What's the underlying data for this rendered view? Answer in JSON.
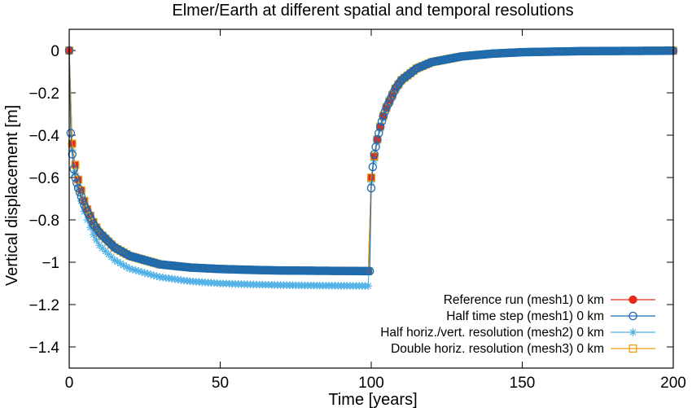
{
  "chart_data": {
    "type": "scatter",
    "title": "Elmer/Earth at different spatial and temporal resolutions",
    "xlabel": "Time [years]",
    "ylabel": "Vertical displacement [m]",
    "xlim": [
      0,
      200
    ],
    "ylim": [
      -1.5,
      0.1
    ],
    "x_ticks": [
      0,
      50,
      100,
      150,
      200
    ],
    "x_tick_labels": [
      "0",
      "50",
      "100",
      "150",
      "200"
    ],
    "y_ticks": [
      0,
      -0.2,
      -0.4,
      -0.6,
      -0.8,
      -1,
      -1.2,
      -1.4
    ],
    "y_tick_labels": [
      "0",
      "−0.2",
      "−0.4",
      "−0.6",
      "−0.8",
      "−1",
      "−1.2",
      "−1.4"
    ],
    "grid": false,
    "legend_position": "bottom-right",
    "marker_interval_years": 1,
    "series": [
      {
        "name": "Reference run (mesh1) 0 km",
        "color": "#e8271a",
        "marker": "filled-circle",
        "x": [
          0,
          1,
          2,
          3,
          4,
          5,
          6,
          8,
          10,
          15,
          20,
          30,
          40,
          50,
          60,
          70,
          80,
          90,
          99,
          100,
          101,
          102,
          103,
          104,
          105,
          106,
          108,
          110,
          115,
          120,
          130,
          140,
          150,
          170,
          200
        ],
        "y": [
          0,
          -0.44,
          -0.54,
          -0.61,
          -0.66,
          -0.71,
          -0.75,
          -0.81,
          -0.86,
          -0.93,
          -0.97,
          -1.01,
          -1.025,
          -1.032,
          -1.036,
          -1.039,
          -1.04,
          -1.041,
          -1.042,
          -0.6,
          -0.5,
          -0.42,
          -0.36,
          -0.31,
          -0.27,
          -0.24,
          -0.18,
          -0.14,
          -0.085,
          -0.055,
          -0.028,
          -0.015,
          -0.008,
          -0.003,
          -0.001
        ]
      },
      {
        "name": "Half time step (mesh1) 0 km",
        "color": "#1c6bb0",
        "marker": "open-circle",
        "x": [
          0,
          0.5,
          1,
          1.5,
          2,
          3,
          4,
          5,
          6,
          8,
          10,
          15,
          20,
          30,
          40,
          50,
          60,
          70,
          80,
          90,
          99,
          99.5,
          100,
          100.5,
          101,
          102,
          103,
          104,
          105,
          106,
          108,
          110,
          115,
          120,
          130,
          140,
          150,
          170,
          200
        ],
        "y": [
          0,
          -0.39,
          -0.49,
          -0.56,
          -0.6,
          -0.65,
          -0.69,
          -0.73,
          -0.76,
          -0.82,
          -0.86,
          -0.93,
          -0.97,
          -1.01,
          -1.025,
          -1.032,
          -1.036,
          -1.039,
          -1.04,
          -1.041,
          -1.042,
          -1.042,
          -0.65,
          -0.55,
          -0.49,
          -0.42,
          -0.36,
          -0.31,
          -0.27,
          -0.24,
          -0.18,
          -0.14,
          -0.085,
          -0.055,
          -0.028,
          -0.015,
          -0.008,
          -0.003,
          -0.001
        ]
      },
      {
        "name": "Half horiz./vert. resolution (mesh2) 0 km",
        "color": "#4fb0e6",
        "marker": "star",
        "x": [
          0,
          1,
          2,
          3,
          4,
          5,
          6,
          8,
          10,
          15,
          20,
          30,
          40,
          50,
          60,
          70,
          80,
          90,
          99,
          100,
          101,
          102,
          103,
          104,
          105,
          106,
          108,
          110,
          115,
          120,
          130,
          140,
          150,
          170,
          200
        ],
        "y": [
          0,
          -0.47,
          -0.58,
          -0.65,
          -0.71,
          -0.76,
          -0.8,
          -0.87,
          -0.92,
          -0.99,
          -1.03,
          -1.07,
          -1.09,
          -1.1,
          -1.105,
          -1.108,
          -1.11,
          -1.111,
          -1.112,
          -0.62,
          -0.52,
          -0.43,
          -0.37,
          -0.32,
          -0.28,
          -0.25,
          -0.19,
          -0.145,
          -0.088,
          -0.057,
          -0.03,
          -0.016,
          -0.008,
          -0.003,
          -0.001
        ]
      },
      {
        "name": "Double horiz. resolution (mesh3) 0 km",
        "color": "#e8a013",
        "marker": "open-square",
        "x": [
          0,
          1,
          2,
          3,
          4,
          5,
          6,
          8,
          10,
          15,
          20,
          30,
          40,
          50,
          60,
          70,
          80,
          90,
          99,
          100,
          101,
          102,
          103,
          104,
          105,
          106,
          108,
          110,
          115,
          120,
          130,
          140,
          150,
          170,
          200
        ],
        "y": [
          0,
          -0.44,
          -0.54,
          -0.61,
          -0.66,
          -0.71,
          -0.75,
          -0.81,
          -0.86,
          -0.93,
          -0.97,
          -1.01,
          -1.025,
          -1.032,
          -1.036,
          -1.039,
          -1.04,
          -1.041,
          -1.042,
          -0.6,
          -0.5,
          -0.42,
          -0.36,
          -0.31,
          -0.27,
          -0.24,
          -0.18,
          -0.14,
          -0.085,
          -0.055,
          -0.028,
          -0.015,
          -0.008,
          -0.003,
          -0.001
        ]
      }
    ]
  }
}
